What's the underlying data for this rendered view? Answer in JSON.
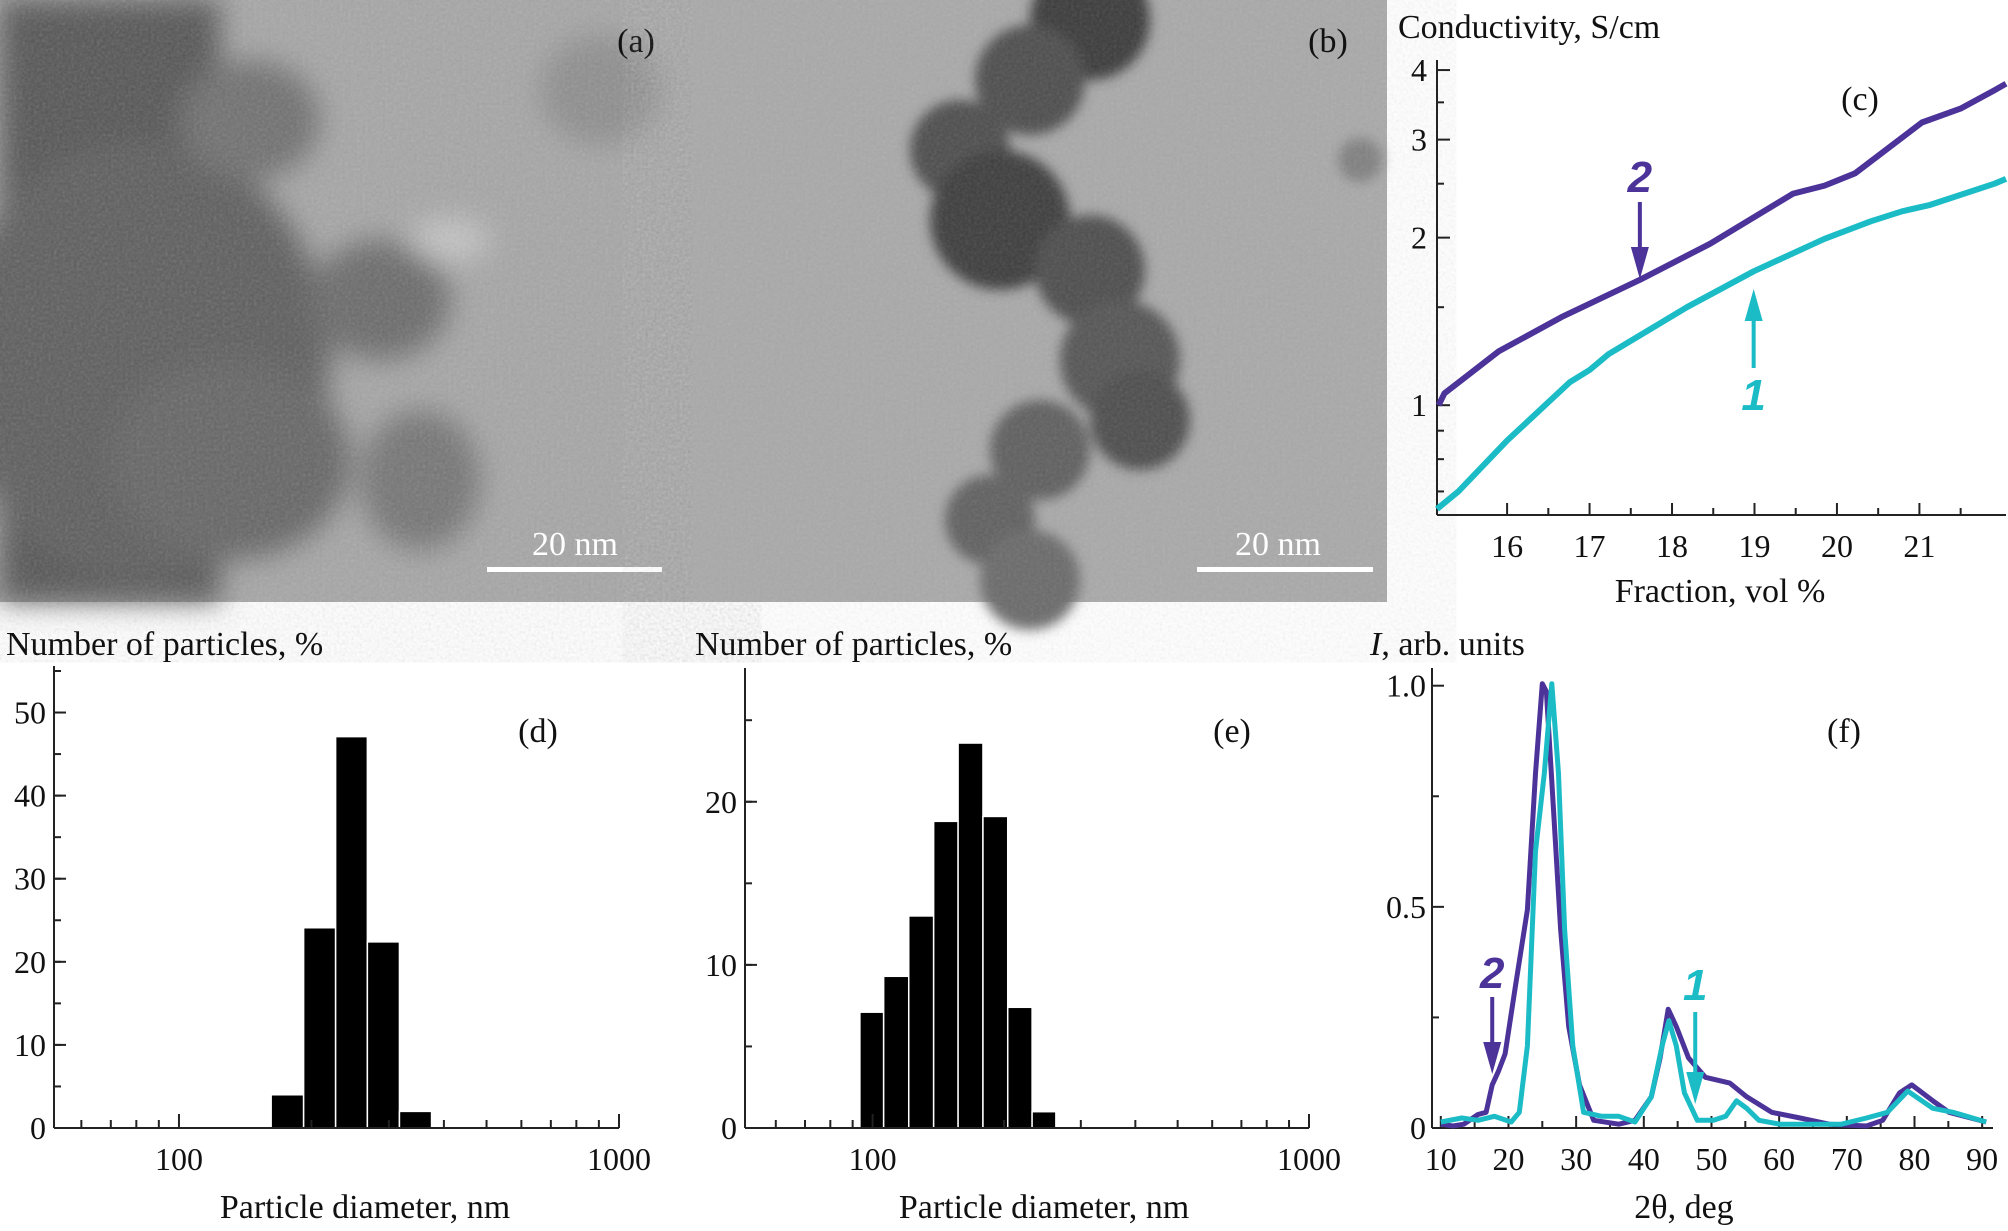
{
  "tem_images": [
    {
      "label": "(a)",
      "scale_bar": "20 nm"
    },
    {
      "label": "(b)",
      "scale_bar": "20 nm"
    }
  ],
  "colors": {
    "curve1": "#1bbcc6",
    "curve2": "#4b3399",
    "bars": "#000000",
    "axis": "#222222"
  },
  "chart_data": [
    {
      "panel": "(c)",
      "type": "line",
      "title": "Conductivity, S/cm",
      "xlabel": "Fraction, vol %",
      "ylabel": "Conductivity, S/cm",
      "yscale": "log",
      "xlim": [
        15.15,
        22.05
      ],
      "ylim": [
        0.635,
        4.17
      ],
      "xticks": [
        "16",
        "17",
        "18",
        "19",
        "20",
        "21"
      ],
      "yticks": [
        "1",
        "2",
        "3",
        "4"
      ],
      "series": [
        {
          "name": "1",
          "color": "#1bbcc6",
          "points": [
            [
              15.15,
              0.651
            ],
            [
              15.41,
              0.7
            ],
            [
              16.0,
              0.864
            ],
            [
              16.76,
              1.1
            ],
            [
              17.0,
              1.157
            ],
            [
              17.23,
              1.235
            ],
            [
              18.18,
              1.5
            ],
            [
              18.99,
              1.74
            ],
            [
              19.85,
              1.99
            ],
            [
              20.41,
              2.14
            ],
            [
              20.79,
              2.23
            ],
            [
              21.13,
              2.29
            ],
            [
              21.91,
              2.5
            ],
            [
              22.05,
              2.55
            ]
          ]
        },
        {
          "name": "2",
          "color": "#4b3399",
          "points": [
            [
              15.17,
              1.0
            ],
            [
              15.24,
              1.05
            ],
            [
              15.9,
              1.25
            ],
            [
              16.66,
              1.44
            ],
            [
              17.61,
              1.68
            ],
            [
              18.46,
              1.95
            ],
            [
              19.47,
              2.4
            ],
            [
              19.85,
              2.48
            ],
            [
              20.22,
              2.61
            ],
            [
              21.03,
              3.22
            ],
            [
              21.5,
              3.41
            ],
            [
              21.91,
              3.68
            ],
            [
              22.05,
              3.78
            ]
          ]
        }
      ],
      "annotations": [
        {
          "text": "2",
          "x": 17.61,
          "arrow": "down"
        },
        {
          "text": "1",
          "x": 18.99,
          "arrow": "up"
        }
      ]
    },
    {
      "panel": "(d)",
      "type": "bar",
      "title": "Number of particles, %",
      "xlabel": "Particle diameter, nm",
      "ylabel": "Number of particles, %",
      "xscale": "log",
      "xlim": [
        52,
        1000
      ],
      "ylim": [
        0,
        55.6
      ],
      "xticks": [
        "100",
        "1000"
      ],
      "yticks": [
        "0",
        "10",
        "20",
        "30",
        "40",
        "50"
      ],
      "bin_edges": [
        162,
        192,
        227,
        268,
        317,
        375
      ],
      "values": [
        4.0,
        24.1,
        47.1,
        22.4,
        2.0
      ]
    },
    {
      "panel": "(e)",
      "type": "bar",
      "title": "Number of particles, %",
      "xlabel": "Particle diameter, nm",
      "ylabel": "Number of particles, %",
      "xscale": "log",
      "xlim": [
        51,
        1000
      ],
      "ylim": [
        0,
        28.2
      ],
      "xticks": [
        "100",
        "1000"
      ],
      "yticks": [
        "0",
        "10",
        "20"
      ],
      "bin_edges": [
        93.5,
        106,
        121,
        138,
        157,
        179,
        204,
        232,
        263
      ],
      "values": [
        7.1,
        9.3,
        13.0,
        18.8,
        23.6,
        19.1,
        7.4,
        1.0
      ]
    },
    {
      "panel": "(f)",
      "type": "line",
      "title": "I, arb. units",
      "title_italic": "I",
      "title_rest": ", arb. units",
      "xlabel": "2θ, deg",
      "ylabel": "I, arb. units",
      "xlim": [
        8.7,
        91.6
      ],
      "ylim": [
        0,
        1.04
      ],
      "xticks": [
        "10",
        "20",
        "30",
        "40",
        "50",
        "60",
        "70",
        "80",
        "90"
      ],
      "yticks": [
        "0",
        "0.5",
        "1.0"
      ],
      "series": [
        {
          "name": "1",
          "color": "#1bbcc6",
          "points": [
            [
              10,
              0.009
            ],
            [
              13.1,
              0.018
            ],
            [
              15.5,
              0.013
            ],
            [
              17.9,
              0.022
            ],
            [
              20.4,
              0.009
            ],
            [
              21.6,
              0.031
            ],
            [
              22.8,
              0.181
            ],
            [
              24.0,
              0.621
            ],
            [
              25.3,
              0.797
            ],
            [
              26.4,
              1.0
            ],
            [
              27.4,
              0.797
            ],
            [
              28.3,
              0.445
            ],
            [
              29.5,
              0.181
            ],
            [
              31.1,
              0.031
            ],
            [
              33.8,
              0.022
            ],
            [
              36.3,
              0.022
            ],
            [
              38.7,
              0.009
            ],
            [
              41.1,
              0.066
            ],
            [
              42.7,
              0.181
            ],
            [
              43.7,
              0.238
            ],
            [
              44.8,
              0.181
            ],
            [
              46.0,
              0.075
            ],
            [
              47.9,
              0.013
            ],
            [
              50.3,
              0.013
            ],
            [
              52.1,
              0.022
            ],
            [
              53.7,
              0.057
            ],
            [
              55.2,
              0.04
            ],
            [
              57.0,
              0.013
            ],
            [
              60.1,
              0.004
            ],
            [
              64.4,
              0.004
            ],
            [
              69.2,
              0.004
            ],
            [
              72.9,
              0.018
            ],
            [
              76.0,
              0.031
            ],
            [
              79.0,
              0.079
            ],
            [
              82.7,
              0.04
            ],
            [
              85.7,
              0.031
            ],
            [
              90.6,
              0.009
            ]
          ]
        },
        {
          "name": "2",
          "color": "#4b3399",
          "points": [
            [
              10,
              0.004
            ],
            [
              11.8,
              0
            ],
            [
              13.4,
              0.004
            ],
            [
              15.5,
              0.026
            ],
            [
              16.7,
              0.031
            ],
            [
              17.6,
              0.093
            ],
            [
              18.5,
              0.123
            ],
            [
              19.5,
              0.163
            ],
            [
              21.0,
              0.313
            ],
            [
              22.8,
              0.489
            ],
            [
              24.0,
              0.797
            ],
            [
              25.0,
              1.0
            ],
            [
              25.6,
              0.982
            ],
            [
              26.5,
              0.753
            ],
            [
              27.7,
              0.445
            ],
            [
              28.9,
              0.225
            ],
            [
              30.5,
              0.093
            ],
            [
              32.6,
              0.013
            ],
            [
              36.3,
              0.004
            ],
            [
              38.7,
              0.013
            ],
            [
              41.1,
              0.066
            ],
            [
              42.4,
              0.154
            ],
            [
              43.6,
              0.264
            ],
            [
              44.8,
              0.225
            ],
            [
              46.6,
              0.154
            ],
            [
              49.1,
              0.11
            ],
            [
              52.7,
              0.097
            ],
            [
              55.2,
              0.066
            ],
            [
              58.9,
              0.031
            ],
            [
              63.1,
              0.018
            ],
            [
              67.4,
              0.004
            ],
            [
              72.9,
              0
            ],
            [
              75.3,
              0.013
            ],
            [
              77.8,
              0.075
            ],
            [
              79.6,
              0.093
            ],
            [
              82.7,
              0.057
            ],
            [
              85.1,
              0.031
            ],
            [
              90.6,
              0.009
            ]
          ]
        }
      ],
      "annotations": [
        {
          "text": "2",
          "x": 17.6,
          "arrow": "down"
        },
        {
          "text": "1",
          "x": 47.6,
          "arrow": "down"
        }
      ]
    }
  ]
}
